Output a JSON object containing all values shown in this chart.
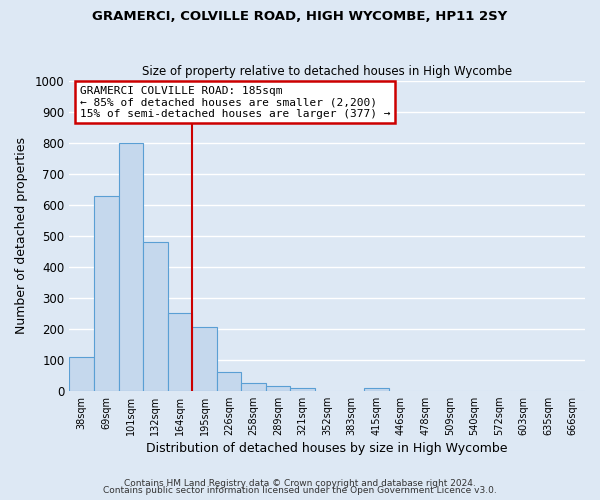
{
  "title": "GRAMERCI, COLVILLE ROAD, HIGH WYCOMBE, HP11 2SY",
  "subtitle": "Size of property relative to detached houses in High Wycombe",
  "xlabel": "Distribution of detached houses by size in High Wycombe",
  "ylabel": "Number of detached properties",
  "bar_color": "#c5d8ed",
  "bar_edge_color": "#5a9fd4",
  "background_color": "#dde8f4",
  "grid_color": "#ffffff",
  "categories": [
    "38sqm",
    "69sqm",
    "101sqm",
    "132sqm",
    "164sqm",
    "195sqm",
    "226sqm",
    "258sqm",
    "289sqm",
    "321sqm",
    "352sqm",
    "383sqm",
    "415sqm",
    "446sqm",
    "478sqm",
    "509sqm",
    "540sqm",
    "572sqm",
    "603sqm",
    "635sqm",
    "666sqm"
  ],
  "values": [
    110,
    630,
    800,
    480,
    250,
    205,
    60,
    25,
    15,
    8,
    0,
    0,
    10,
    0,
    0,
    0,
    0,
    0,
    0,
    0,
    0
  ],
  "ylim": [
    0,
    1000
  ],
  "yticks": [
    0,
    100,
    200,
    300,
    400,
    500,
    600,
    700,
    800,
    900,
    1000
  ],
  "vline_color": "#cc0000",
  "annotation_title": "GRAMERCI COLVILLE ROAD: 185sqm",
  "annotation_line1": "← 85% of detached houses are smaller (2,200)",
  "annotation_line2": "15% of semi-detached houses are larger (377) →",
  "annotation_box_color": "#ffffff",
  "annotation_box_edge": "#cc0000",
  "footnote1": "Contains HM Land Registry data © Crown copyright and database right 2024.",
  "footnote2": "Contains public sector information licensed under the Open Government Licence v3.0."
}
